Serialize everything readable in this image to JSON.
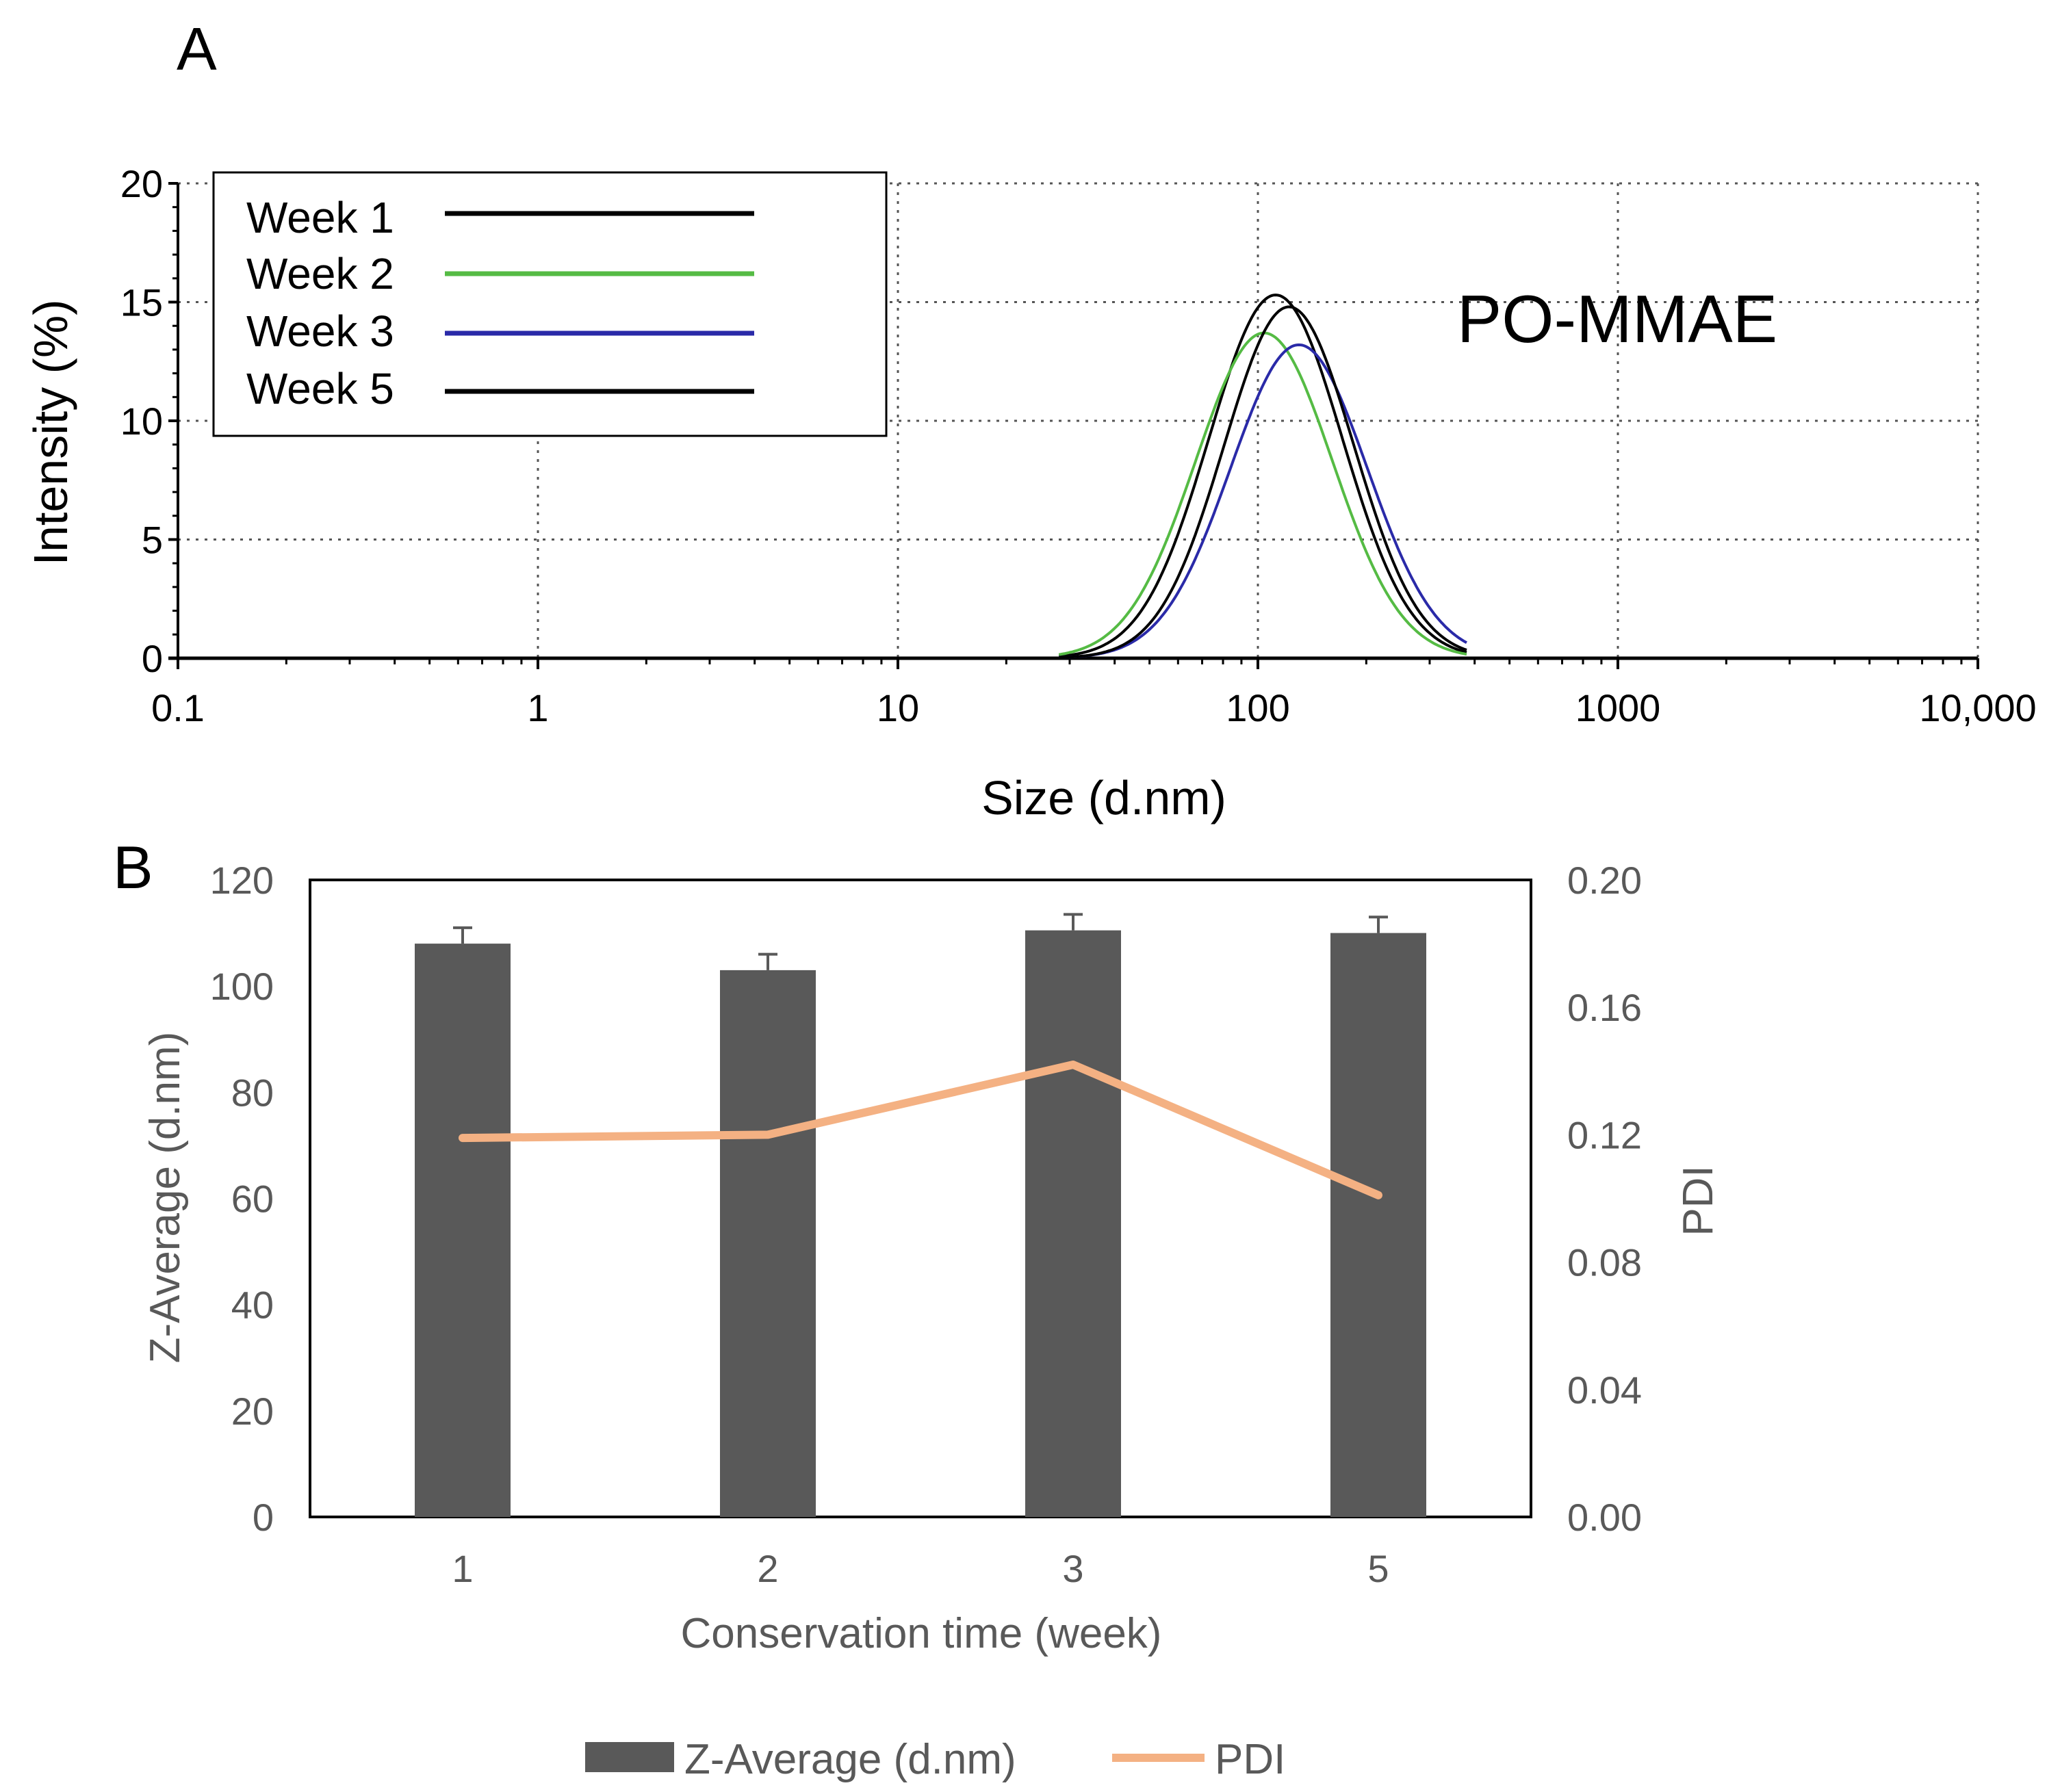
{
  "chart_data": [
    {
      "panel_label": "A",
      "type": "line",
      "title": "PO-MMAE",
      "xlabel": "Size (d.nm)",
      "ylabel": "Intensity (%)",
      "xscale": "log",
      "xlim": [
        0.1,
        10000
      ],
      "ylim": [
        0,
        20
      ],
      "x_tick_labels": [
        "0.1",
        "1",
        "10",
        "100",
        "1000",
        "10,000"
      ],
      "x_tick_values": [
        0.1,
        1,
        10,
        100,
        1000,
        10000
      ],
      "y_ticks": [
        0,
        5,
        10,
        15,
        20
      ],
      "grid": true,
      "legend_position": "top-left",
      "series": [
        {
          "name": "Week 1",
          "color": "#000000",
          "peak_x": 112,
          "peak_y": 15.3,
          "sigma_log10": 0.185,
          "range": [
            28,
            380
          ]
        },
        {
          "name": "Week 2",
          "color": "#55bb44",
          "peak_x": 104,
          "peak_y": 13.7,
          "sigma_log10": 0.19,
          "range": [
            28,
            380
          ]
        },
        {
          "name": "Week 3",
          "color": "#2a2aa8",
          "peak_x": 130,
          "peak_y": 13.2,
          "sigma_log10": 0.19,
          "range": [
            28,
            380
          ]
        },
        {
          "name": "Week 5",
          "color": "#000000",
          "peak_x": 122,
          "peak_y": 14.8,
          "sigma_log10": 0.18,
          "range": [
            28,
            380
          ]
        }
      ]
    },
    {
      "panel_label": "B",
      "type": "bar",
      "xlabel": "Conservation time (week)",
      "ylabel": "Z-Average (d.nm)",
      "ylabel_right": "PDI",
      "categories": [
        "1",
        "2",
        "3",
        "5"
      ],
      "ylim": [
        0,
        120
      ],
      "y_ticks": [
        "0",
        "20",
        "40",
        "60",
        "80",
        "100",
        "120"
      ],
      "ylim_right": [
        0,
        0.2
      ],
      "y_ticks_right": [
        "0.00",
        "0.04",
        "0.08",
        "0.12",
        "0.16",
        "0.20"
      ],
      "legend_position": "bottom-center",
      "series": [
        {
          "name": "Z-Average (d.nm)",
          "type": "bar",
          "axis": "left",
          "color": "#595959",
          "values": [
            108,
            103,
            110.5,
            110
          ],
          "errors": [
            3,
            3,
            3,
            3
          ]
        },
        {
          "name": "PDI",
          "type": "line",
          "axis": "right",
          "color": "#f4b183",
          "values": [
            0.119,
            0.12,
            0.142,
            0.101
          ]
        }
      ]
    }
  ]
}
